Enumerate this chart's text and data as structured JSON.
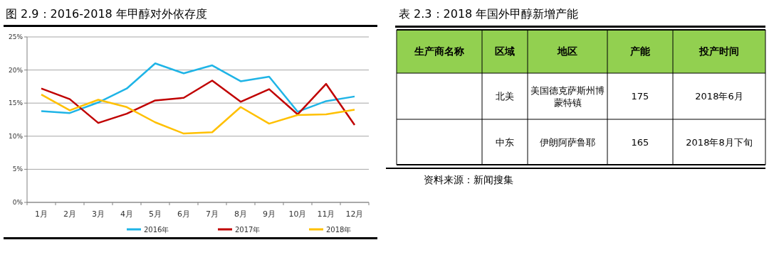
{
  "chart_data": [
    {
      "type": "line",
      "title": "图 2.9：2016-2018 年甲醇对外依存度",
      "categories": [
        "1月",
        "2月",
        "3月",
        "4月",
        "5月",
        "6月",
        "7月",
        "8月",
        "9月",
        "10月",
        "11月",
        "12月"
      ],
      "series": [
        {
          "name": "2016年",
          "color": "#1fb4e6",
          "values": [
            13.8,
            13.5,
            15.1,
            17.2,
            21.0,
            19.5,
            20.7,
            18.3,
            19.0,
            13.7,
            15.3,
            16.0
          ]
        },
        {
          "name": "2017年",
          "color": "#c00000",
          "values": [
            17.2,
            15.6,
            12.0,
            13.4,
            15.4,
            15.8,
            18.4,
            15.2,
            17.1,
            13.3,
            17.9,
            11.7
          ]
        },
        {
          "name": "2018年",
          "color": "#ffc000",
          "values": [
            16.3,
            13.9,
            15.5,
            14.4,
            12.1,
            10.4,
            10.6,
            14.4,
            11.9,
            13.2,
            13.3,
            14.0
          ]
        }
      ],
      "ylim": [
        0,
        25
      ],
      "yticks": [
        {
          "value": 0,
          "label": "0%"
        },
        {
          "value": 5,
          "label": "5%"
        },
        {
          "value": 10,
          "label": "10%"
        },
        {
          "value": 15,
          "label": "15%"
        },
        {
          "value": 20,
          "label": "20%"
        },
        {
          "value": 25,
          "label": "25%"
        }
      ],
      "grid": "y",
      "legend": "bottom",
      "marker": "none",
      "line_style": "solid"
    },
    {
      "type": "other",
      "title": "表 2.3：2018 年国外甲醇新增产能",
      "categories": [
        "生产商名称",
        "区域",
        "地区",
        "产能",
        "投产时间"
      ],
      "cell_labels": [
        [
          null,
          "北美",
          "美国德克萨斯州博蒙特镇",
          "175",
          "2018年6月"
        ],
        [
          null,
          "中东",
          "伊朗阿萨鲁耶",
          "165",
          "2018年8月下旬"
        ]
      ],
      "annotations": [
        "资料来源：新闻搜集"
      ]
    }
  ]
}
